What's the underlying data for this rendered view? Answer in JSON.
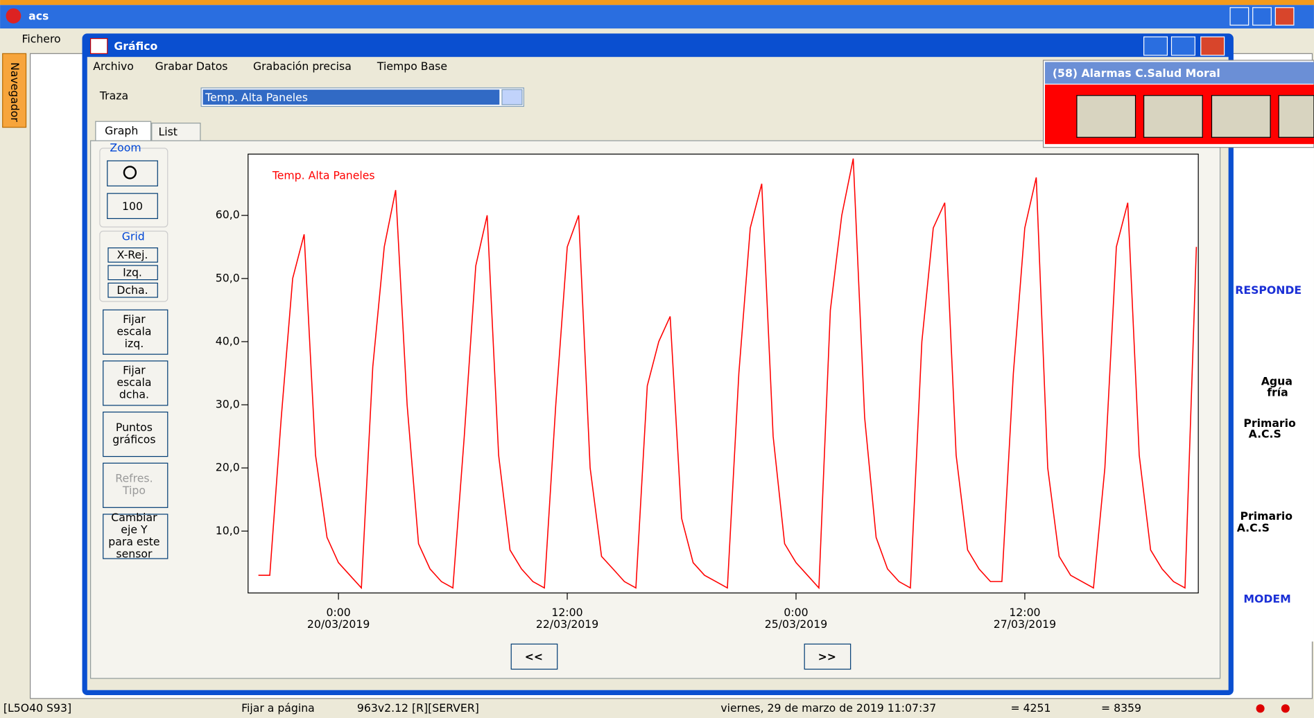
{
  "app": {
    "title": "acs",
    "menu": "Fichero",
    "navigator": "Navegador"
  },
  "dialog": {
    "title": "Gráfico",
    "menu": [
      "Archivo",
      "Grabar Datos",
      "Grabación precisa",
      "Tiempo Base"
    ],
    "trace_label": "Traza",
    "trace_value": "Temp. Alta Paneles",
    "tabs": [
      "Graph",
      "List"
    ],
    "zoom": "Zoom",
    "zoom_value": "100",
    "grid": "Grid",
    "grid_buttons": [
      "X-Rej.",
      "Izq.",
      "Dcha."
    ],
    "buttons": [
      [
        "Fijar",
        "escala",
        "izq."
      ],
      [
        "Fijar",
        "escala",
        "dcha."
      ],
      [
        "Puntos",
        "gráficos"
      ],
      [
        "Refres.",
        "Tipo"
      ],
      [
        "Cambiar",
        "eje Y",
        "para este",
        "sensor"
      ]
    ],
    "nav": [
      "<<",
      ">>"
    ]
  },
  "alarms": {
    "title": "(58) Alarmas C.Salud Moral"
  },
  "background": {
    "labels": [
      "RESPONDE",
      "Agua",
      "fría",
      "Primario",
      "A.C.S",
      "Primario",
      "A.C.S",
      "MODEM"
    ]
  },
  "status": [
    "[L5O40 S93]",
    "Fijar a página",
    "963v2.12 [R][SERVER]",
    "viernes, 29 de marzo de 2019 11:07:37",
    "= 4251",
    "= 8359"
  ],
  "chart_data": {
    "type": "line",
    "xlim": [
      "2019-03-19 00:18",
      "2019-03-29 09:30"
    ],
    "xticks": [
      {
        "value": "2019-03-20 00:00",
        "label": [
          "0:00",
          "20/03/2019"
        ]
      },
      {
        "value": "2019-03-22 12:00",
        "label": [
          "12:00",
          "22/03/2019"
        ]
      },
      {
        "value": "2019-03-25 00:00",
        "label": [
          "0:00",
          "25/03/2019"
        ]
      },
      {
        "value": "2019-03-27 12:00",
        "label": [
          "12:00",
          "27/03/2019"
        ]
      }
    ],
    "ylim": [
      0.2,
      69.7
    ],
    "yticks": [
      {
        "value": 10,
        "label": "10,0"
      },
      {
        "value": 20,
        "label": "20,0"
      },
      {
        "value": 30,
        "label": "30,0"
      },
      {
        "value": 40,
        "label": "40,0"
      },
      {
        "value": 50,
        "label": "50,0"
      },
      {
        "value": 60,
        "label": "60,0"
      }
    ],
    "x": [
      "2019-03-19 03:00",
      "2019-03-19 06:00",
      "2019-03-19 09:00",
      "2019-03-19 12:00",
      "2019-03-19 15:00",
      "2019-03-19 18:00",
      "2019-03-19 21:00",
      "2019-03-20 00:00",
      "2019-03-20 03:00",
      "2019-03-20 06:00",
      "2019-03-20 09:00",
      "2019-03-20 12:00",
      "2019-03-20 15:00",
      "2019-03-20 18:00",
      "2019-03-20 21:00",
      "2019-03-21 00:00",
      "2019-03-21 03:00",
      "2019-03-21 06:00",
      "2019-03-21 09:00",
      "2019-03-21 12:00",
      "2019-03-21 15:00",
      "2019-03-21 18:00",
      "2019-03-21 21:00",
      "2019-03-22 00:00",
      "2019-03-22 03:00",
      "2019-03-22 06:00",
      "2019-03-22 09:00",
      "2019-03-22 12:00",
      "2019-03-22 15:00",
      "2019-03-22 18:00",
      "2019-03-22 21:00",
      "2019-03-23 00:00",
      "2019-03-23 03:00",
      "2019-03-23 06:00",
      "2019-03-23 09:00",
      "2019-03-23 12:00",
      "2019-03-23 15:00",
      "2019-03-23 18:00",
      "2019-03-23 21:00",
      "2019-03-24 00:00",
      "2019-03-24 03:00",
      "2019-03-24 06:00",
      "2019-03-24 09:00",
      "2019-03-24 12:00",
      "2019-03-24 15:00",
      "2019-03-24 18:00",
      "2019-03-24 21:00",
      "2019-03-25 00:00",
      "2019-03-25 03:00",
      "2019-03-25 06:00",
      "2019-03-25 09:00",
      "2019-03-25 12:00",
      "2019-03-25 15:00",
      "2019-03-25 18:00",
      "2019-03-25 21:00",
      "2019-03-26 00:00",
      "2019-03-26 03:00",
      "2019-03-26 06:00",
      "2019-03-26 09:00",
      "2019-03-26 12:00",
      "2019-03-26 15:00",
      "2019-03-26 18:00",
      "2019-03-26 21:00",
      "2019-03-27 00:00",
      "2019-03-27 03:00",
      "2019-03-27 06:00",
      "2019-03-27 09:00",
      "2019-03-27 12:00",
      "2019-03-27 15:00",
      "2019-03-27 18:00",
      "2019-03-27 21:00",
      "2019-03-28 00:00",
      "2019-03-28 03:00",
      "2019-03-28 06:00",
      "2019-03-28 09:00",
      "2019-03-28 12:00",
      "2019-03-28 15:00",
      "2019-03-28 18:00",
      "2019-03-28 21:00",
      "2019-03-29 00:00",
      "2019-03-29 03:00",
      "2019-03-29 06:00",
      "2019-03-29 09:00"
    ],
    "series": [
      {
        "name": "Temp. Alta Paneles",
        "color": "#ff0000",
        "values": [
          3,
          3,
          28,
          50,
          57,
          22,
          9,
          5,
          3,
          1,
          36,
          55,
          64,
          30,
          8,
          4,
          2,
          1,
          25,
          52,
          60,
          22,
          7,
          4,
          2,
          1,
          30,
          55,
          60,
          20,
          6,
          4,
          2,
          1,
          33,
          40,
          44,
          12,
          5,
          3,
          2,
          1,
          35,
          58,
          65,
          25,
          8,
          5,
          3,
          1,
          45,
          60,
          69,
          28,
          9,
          4,
          2,
          1,
          40,
          58,
          62,
          22,
          7,
          4,
          2,
          2,
          35,
          58,
          66,
          20,
          6,
          3,
          2,
          1,
          20,
          55,
          62,
          22,
          7,
          4,
          2,
          1,
          55
        ]
      }
    ]
  }
}
